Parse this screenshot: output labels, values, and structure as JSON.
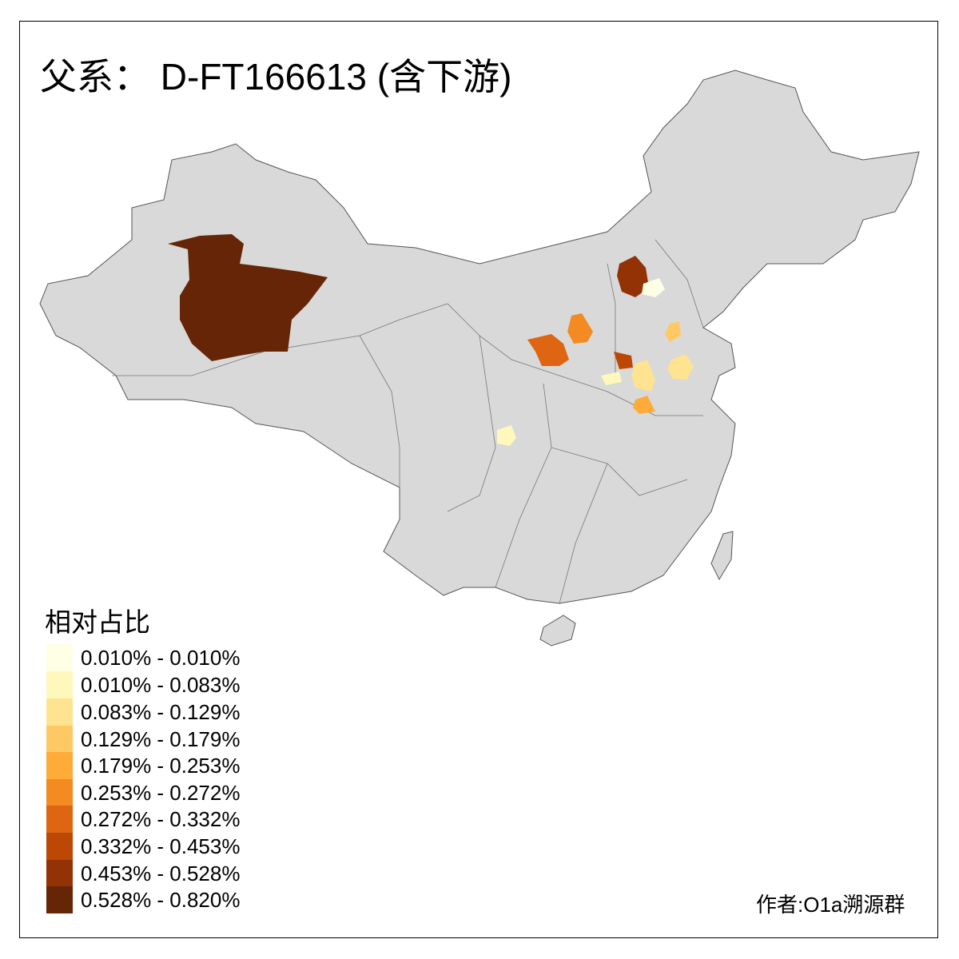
{
  "title": "父系： D-FT166613 (含下游)",
  "credit": "作者:O1a溯源群",
  "map": {
    "base_fill": "#d9d9d9",
    "border_color": "#555555",
    "highlighted_regions": [
      {
        "area": "western Xinjiang",
        "bin": 9
      },
      {
        "area": "northern Hebei",
        "bin": 8
      },
      {
        "area": "Beijing",
        "bin": 0
      },
      {
        "area": "northern Shanxi",
        "bin": 5
      },
      {
        "area": "western Shanxi",
        "bin": 6
      },
      {
        "area": "Shandong north",
        "bin": 3
      },
      {
        "area": "Shandong central",
        "bin": 2
      },
      {
        "area": "southern Shanxi",
        "bin": 7
      },
      {
        "area": "northern Henan west",
        "bin": 1
      },
      {
        "area": "northern Henan east",
        "bin": 2
      },
      {
        "area": "central Henan",
        "bin": 4
      },
      {
        "area": "Sichuan east",
        "bin": 1
      }
    ]
  },
  "legend": {
    "title": "相对占比",
    "items": [
      {
        "label": "0.010% - 0.010%",
        "color": "#ffffe5"
      },
      {
        "label": "0.010% - 0.083%",
        "color": "#fff7bc"
      },
      {
        "label": "0.083% - 0.129%",
        "color": "#fee391"
      },
      {
        "label": "0.129% - 0.179%",
        "color": "#fec965"
      },
      {
        "label": "0.179% - 0.253%",
        "color": "#feab3a"
      },
      {
        "label": "0.253% - 0.272%",
        "color": "#f38a22"
      },
      {
        "label": "0.272% - 0.332%",
        "color": "#de6512"
      },
      {
        "label": "0.332% - 0.453%",
        "color": "#bd4705"
      },
      {
        "label": "0.453% - 0.528%",
        "color": "#933205"
      },
      {
        "label": "0.528% - 0.820%",
        "color": "#662506"
      }
    ]
  }
}
